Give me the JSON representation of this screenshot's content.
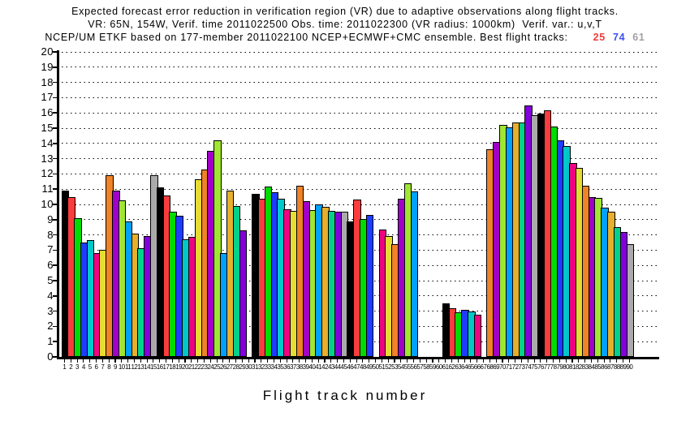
{
  "chart_data": {
    "type": "bar",
    "title_lines": [
      "Expected forecast error reduction in verification region (VR) due to adaptive observations along flight tracks.",
      "VR: 65N, 154W, Verif. time 2011022500 Obs. time: 2011022300 (VR radius: 1000km)  Verif. var.: u,v,T",
      "NCEP/UM ETKF based on 177-member 2011022100 NCEP+ECMWF+CMC ensemble. Best flight tracks:"
    ],
    "best_flight_tracks": [
      {
        "track": "25",
        "color": "#F03C3C"
      },
      {
        "track": "74",
        "color": "#3C50F0"
      },
      {
        "track": "61",
        "color": "#A0A0A0"
      }
    ],
    "xlabel": "Flight track number",
    "ylabel": "",
    "ylim": [
      0,
      20
    ],
    "ytick_step": 1,
    "xlim": [
      1,
      90
    ],
    "grid": "dotted-horizontal",
    "legend": "none",
    "bar_outline_color": "#000000",
    "color_cycle_grads": [
      "#000000",
      "#FA3C3C",
      "#00DC00",
      "#1E3CFF",
      "#00C8C8",
      "#F00082",
      "#E6DC32",
      "#F08228",
      "#A000C8",
      "#A0E632",
      "#00A0FF",
      "#E6AF2D",
      "#00D28C",
      "#8200DC",
      "#AAAAAA"
    ],
    "color_rule": "bar fill = color_cycle_grads[(track_number - 1) % 15]; value 0 = no bar drawn",
    "x": [
      1,
      2,
      3,
      4,
      5,
      6,
      7,
      8,
      9,
      10,
      11,
      12,
      13,
      14,
      15,
      16,
      17,
      18,
      19,
      20,
      21,
      22,
      23,
      24,
      25,
      26,
      27,
      28,
      29,
      30,
      31,
      32,
      33,
      34,
      35,
      36,
      37,
      38,
      39,
      40,
      41,
      42,
      43,
      44,
      45,
      46,
      47,
      48,
      49,
      50,
      51,
      52,
      53,
      54,
      55,
      56,
      57,
      58,
      59,
      60,
      61,
      62,
      63,
      64,
      65,
      66,
      67,
      68,
      69,
      70,
      71,
      72,
      73,
      74,
      75,
      76,
      77,
      78,
      79,
      80,
      81,
      82,
      83,
      84,
      85,
      86,
      87,
      88,
      89,
      90
    ],
    "values": [
      10.9,
      10.5,
      9.1,
      7.5,
      7.65,
      6.8,
      7.05,
      11.9,
      10.9,
      10.25,
      8.9,
      8.1,
      7.15,
      7.95,
      11.9,
      11.1,
      10.6,
      9.55,
      9.25,
      7.7,
      7.9,
      11.65,
      12.3,
      13.5,
      14.2,
      6.8,
      10.9,
      9.9,
      8.3,
      0,
      10.7,
      10.35,
      11.15,
      10.8,
      10.4,
      9.7,
      9.6,
      11.25,
      10.2,
      9.65,
      10.0,
      9.85,
      9.6,
      9.55,
      9.55,
      8.9,
      10.3,
      9.05,
      9.3,
      0,
      8.35,
      7.95,
      7.4,
      10.4,
      11.4,
      10.85,
      0,
      0,
      0,
      0,
      3.5,
      3.2,
      2.95,
      3.1,
      3.0,
      2.75,
      0,
      13.6,
      14.1,
      15.2,
      15.05,
      15.4,
      15.35,
      16.5,
      15.85,
      15.95,
      16.15,
      15.1,
      14.2,
      13.85,
      12.7,
      12.4,
      11.2,
      10.5,
      10.45,
      9.8,
      9.5,
      8.5,
      8.2,
      7.4
    ]
  }
}
